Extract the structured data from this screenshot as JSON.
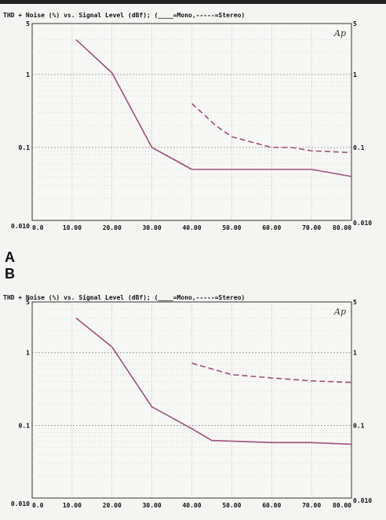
{
  "chart_data": [
    {
      "type": "line",
      "panel": "A",
      "title": "THD + Noise (%) vs. Signal Level (dBf); (____=Mono,-----=Stereo)",
      "logo": "Ap",
      "xlabel": "",
      "ylabel": "",
      "x_ticks": [
        "0.0",
        "10.00",
        "20.00",
        "30.00",
        "40.00",
        "50.00",
        "60.00",
        "70.00",
        "80.00"
      ],
      "y_ticks_left": [
        "5",
        "1",
        "0.1",
        "0.010"
      ],
      "y_ticks_right": [
        "5",
        "1",
        "0.1",
        "0.010"
      ],
      "xlim": [
        0,
        80
      ],
      "ylim": [
        0.01,
        5
      ],
      "y_scale": "log",
      "grid": true,
      "series": [
        {
          "name": "Mono",
          "style": "solid",
          "color": "#a0507a",
          "x": [
            11,
            20,
            30,
            40,
            50,
            60,
            70,
            80
          ],
          "y": [
            3.0,
            1.05,
            0.1,
            0.05,
            0.05,
            0.05,
            0.05,
            0.04
          ]
        },
        {
          "name": "Stereo",
          "style": "dashed",
          "color": "#a0507a",
          "x": [
            40,
            46,
            50,
            60,
            65,
            70,
            80
          ],
          "y": [
            0.4,
            0.2,
            0.14,
            0.1,
            0.1,
            0.09,
            0.085
          ]
        }
      ]
    },
    {
      "type": "line",
      "panel": "B",
      "title": "THD + Noise (%) vs. Signal Level (dBf); (____=Mono,-----=Stereo)",
      "logo": "Ap",
      "xlabel": "",
      "ylabel": "",
      "x_ticks": [
        "0.0",
        "10.00",
        "20.00",
        "30.00",
        "40.00",
        "50.00",
        "60.00",
        "70.00",
        "80.00"
      ],
      "y_ticks_left": [
        "5",
        "1",
        "0.1",
        "0.010"
      ],
      "y_ticks_right": [
        "5",
        "1",
        "0.1",
        "0.010"
      ],
      "xlim": [
        0,
        80
      ],
      "ylim": [
        0.01,
        5
      ],
      "y_scale": "log",
      "grid": true,
      "series": [
        {
          "name": "Mono",
          "style": "solid",
          "color": "#a0507a",
          "x": [
            11,
            20,
            30,
            40,
            45,
            60,
            70,
            80
          ],
          "y": [
            3.0,
            1.2,
            0.18,
            0.09,
            0.062,
            0.058,
            0.058,
            0.055
          ]
        },
        {
          "name": "Stereo",
          "style": "dashed",
          "color": "#a0507a",
          "x": [
            40,
            50,
            60,
            70,
            80
          ],
          "y": [
            0.72,
            0.5,
            0.45,
            0.41,
            0.39
          ]
        }
      ]
    }
  ],
  "labels": {
    "panel_a": "A",
    "panel_b": "B"
  }
}
